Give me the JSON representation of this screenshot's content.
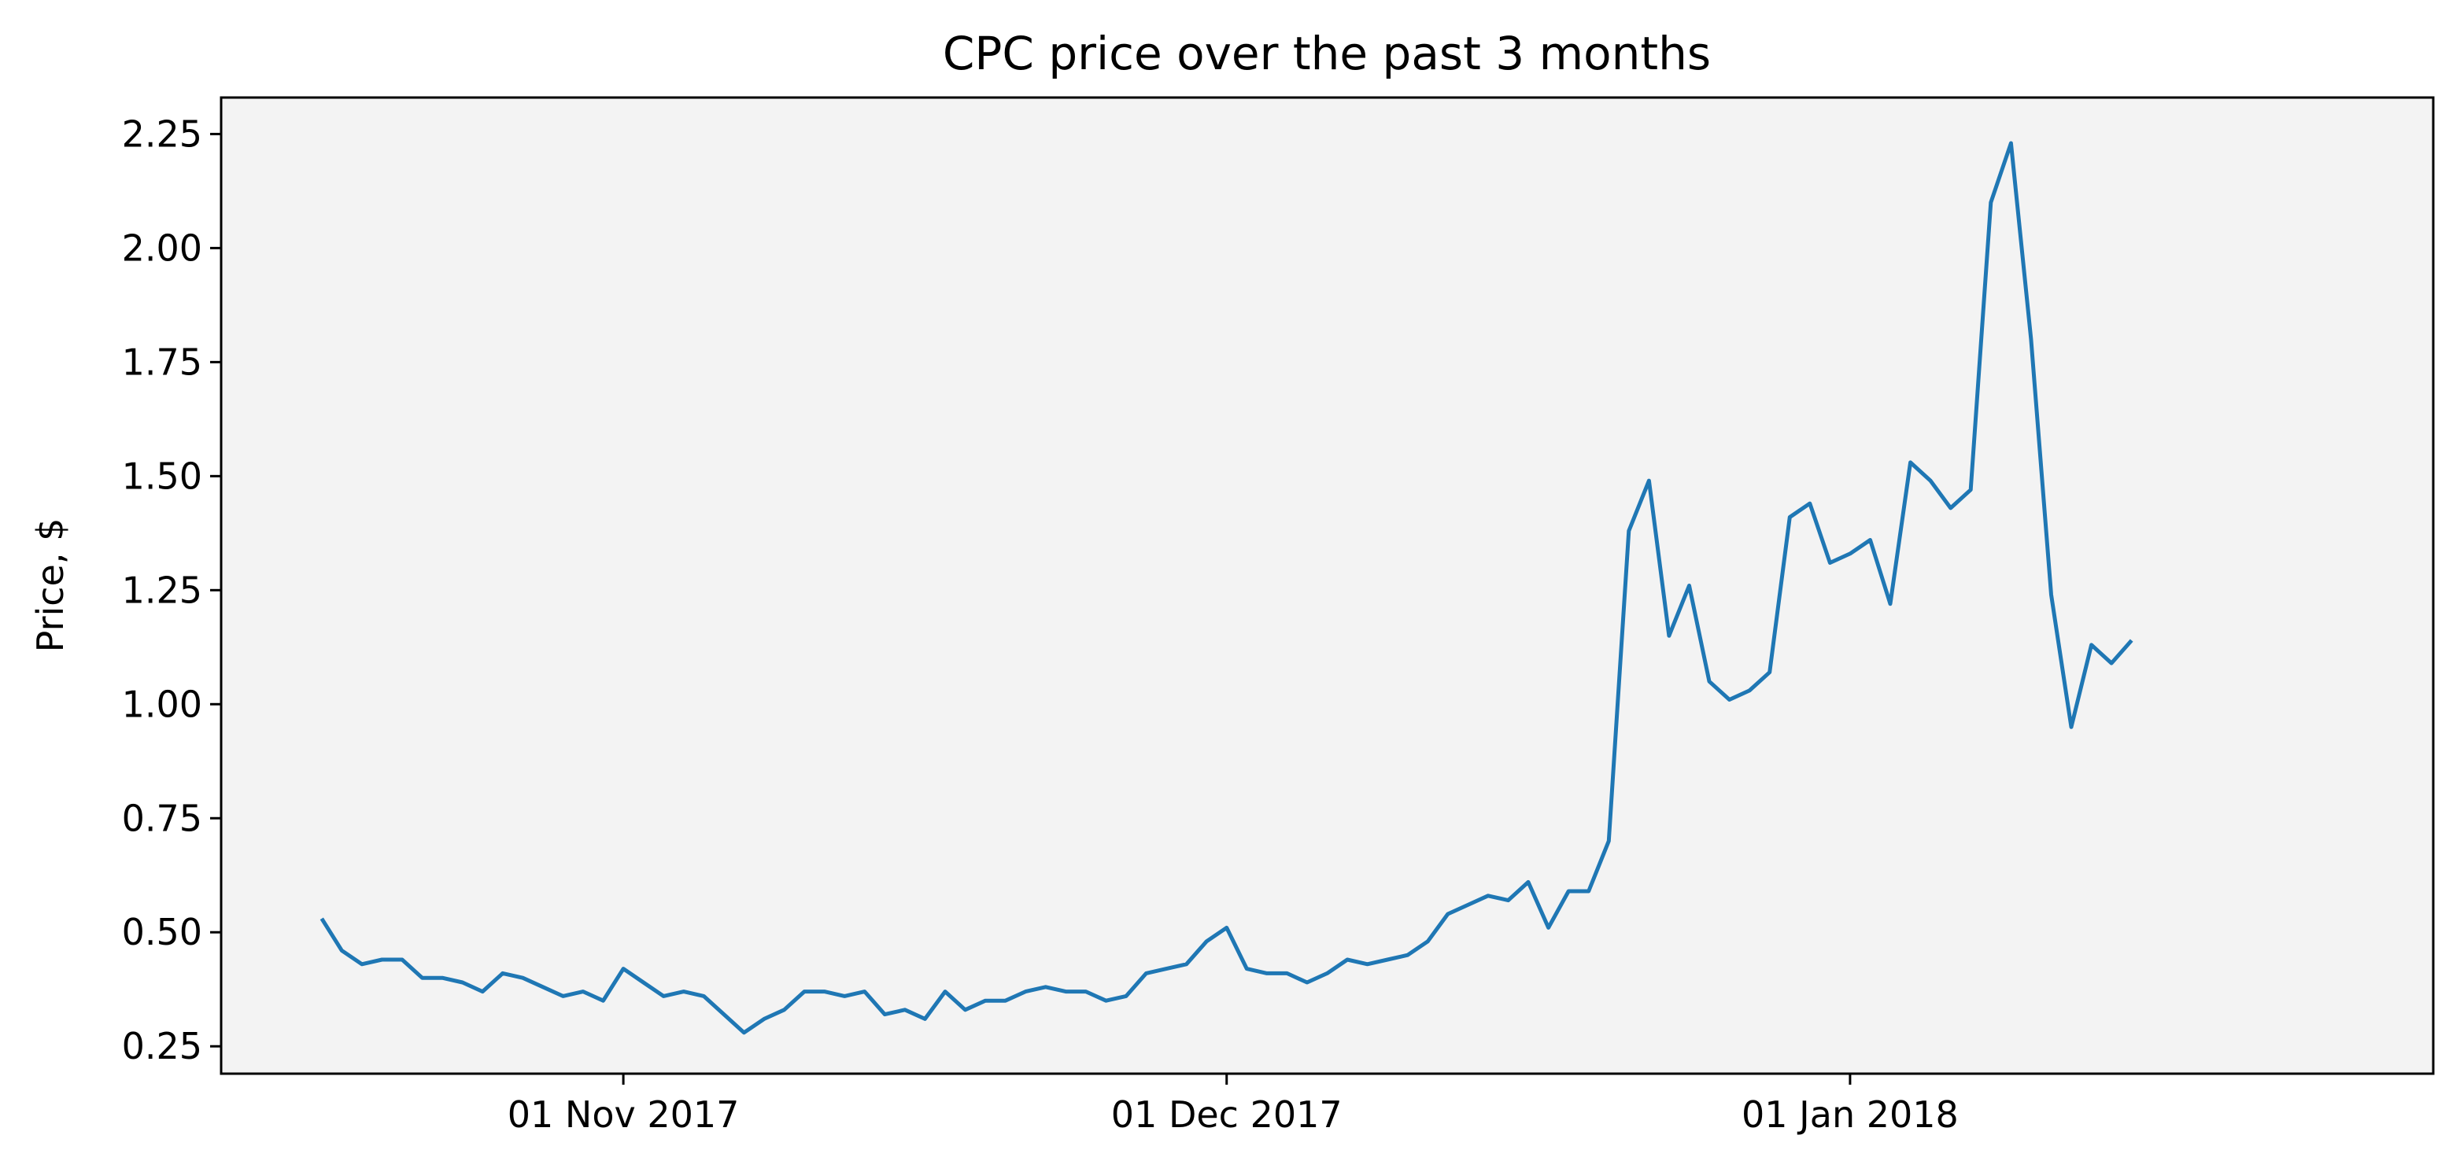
{
  "chart_data": {
    "type": "line",
    "title": "CPC price over the past 3 months",
    "xlabel": "",
    "ylabel": "Price, $",
    "xlim": [
      "2017-10-12",
      "2018-01-30"
    ],
    "ylim": [
      0.19,
      2.33
    ],
    "x_ticks": [
      {
        "date": "2017-11-01",
        "label": "01 Nov 2017"
      },
      {
        "date": "2017-12-01",
        "label": "01 Dec 2017"
      },
      {
        "date": "2018-01-01",
        "label": "01 Jan 2018"
      }
    ],
    "y_ticks": [
      "0.25",
      "0.50",
      "0.75",
      "1.00",
      "1.25",
      "1.50",
      "1.75",
      "2.00",
      "2.25"
    ],
    "grid": false,
    "colors": {
      "line": "#1f77b4",
      "plot_background": "#f3f3f3",
      "axes": "#000000"
    },
    "series": [
      {
        "x_start": "2017-10-17",
        "x_step_days": 1,
        "values": [
          0.53,
          0.46,
          0.43,
          0.44,
          0.44,
          0.4,
          0.4,
          0.39,
          0.37,
          0.41,
          0.4,
          0.38,
          0.36,
          0.37,
          0.35,
          0.42,
          0.39,
          0.36,
          0.37,
          0.36,
          0.32,
          0.28,
          0.31,
          0.33,
          0.37,
          0.37,
          0.36,
          0.37,
          0.32,
          0.33,
          0.31,
          0.37,
          0.33,
          0.35,
          0.35,
          0.37,
          0.38,
          0.37,
          0.37,
          0.35,
          0.36,
          0.41,
          0.42,
          0.43,
          0.48,
          0.51,
          0.42,
          0.41,
          0.41,
          0.39,
          0.41,
          0.44,
          0.43,
          0.44,
          0.45,
          0.48,
          0.54,
          0.56,
          0.58,
          0.57,
          0.61,
          0.51,
          0.59,
          0.59,
          0.7,
          1.38,
          1.49,
          1.15,
          1.26,
          1.05,
          1.01,
          1.03,
          1.07,
          1.41,
          1.44,
          1.31,
          1.33,
          1.36,
          1.22,
          1.53,
          1.49,
          1.43,
          1.47,
          2.1,
          2.23,
          1.8,
          1.24,
          0.95,
          1.13,
          1.09,
          1.14
        ]
      }
    ]
  }
}
